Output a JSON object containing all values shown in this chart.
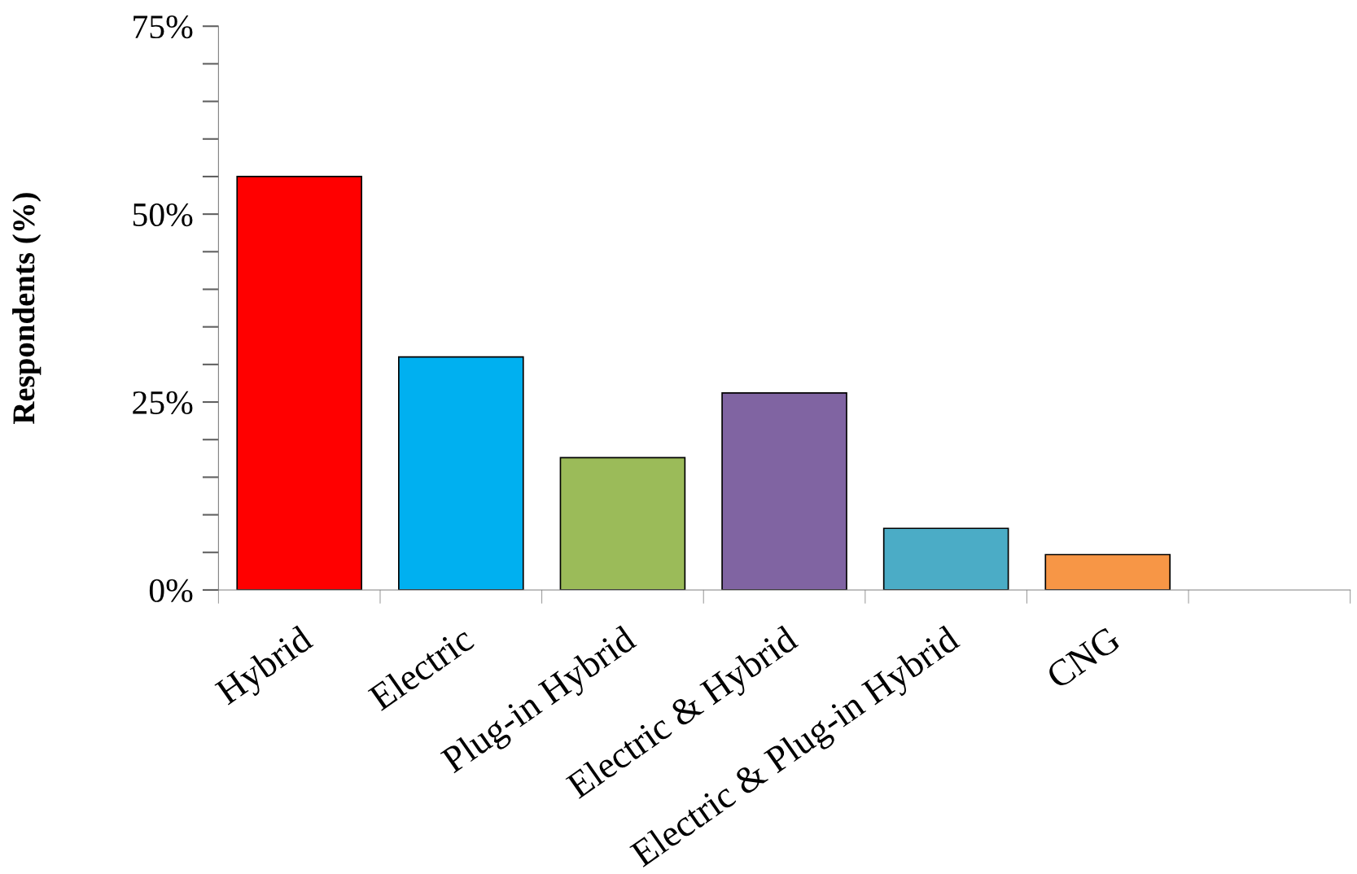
{
  "chart_data": {
    "type": "bar",
    "ylabel": "Respondents (%)",
    "categories": [
      "Hybrid",
      "Electric",
      "Plug-in Hybrid",
      "Electric & Hybrid",
      "Electric & Plug-in Hybrid",
      "CNG",
      null
    ],
    "values": [
      55.0,
      31.0,
      17.6,
      26.2,
      8.2,
      4.7,
      null
    ],
    "colors": [
      "#ff0000",
      "#00b0f0",
      "#9bbb59",
      "#8064a2",
      "#4bacc6",
      "#f79646",
      "#000000"
    ],
    "ylim": [
      0,
      75
    ],
    "yticks": [
      {
        "value": 0,
        "label": "0%"
      },
      {
        "value": 25,
        "label": "25%"
      },
      {
        "value": 50,
        "label": "50%"
      },
      {
        "value": 75,
        "label": "75%"
      }
    ],
    "grid": false
  }
}
